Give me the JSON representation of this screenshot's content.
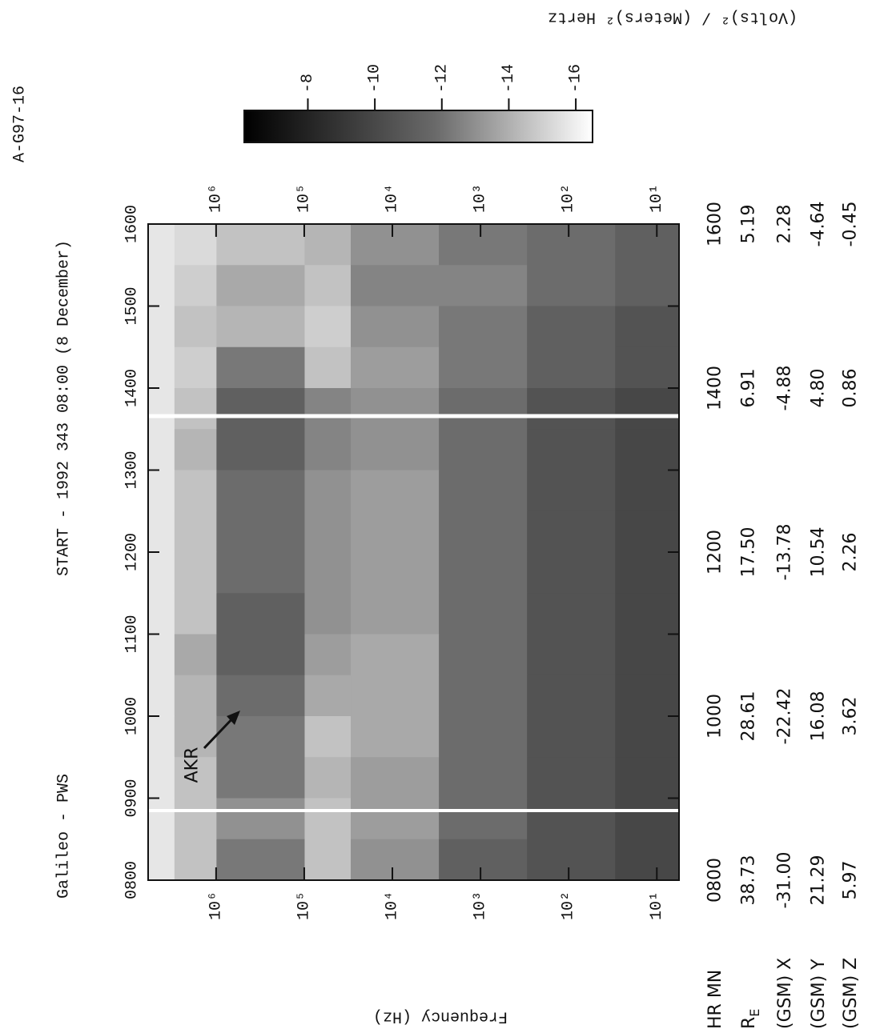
{
  "label": "A-G97-16",
  "chart_data": {
    "type": "heatmap",
    "title": "Galileo - PWS",
    "subtitle": "START - 1992 343 08:00 (8 December)",
    "y_label": "Frequency (Hz)",
    "colorbar_label": "(Volts)² / (Meters)² Hertz",
    "annotations": [
      "AKR"
    ],
    "xlim": [
      8,
      16
    ],
    "xticks": [
      {
        "value": 8,
        "label": "0800"
      },
      {
        "value": 9,
        "label": "0900"
      },
      {
        "value": 10,
        "label": "1000"
      },
      {
        "value": 11,
        "label": "1100"
      },
      {
        "value": 12,
        "label": "1200"
      },
      {
        "value": 13,
        "label": "1300"
      },
      {
        "value": 14,
        "label": "1400"
      },
      {
        "value": 15,
        "label": "1500"
      },
      {
        "value": 16,
        "label": "1600"
      }
    ],
    "ylim": [
      5.6,
      5900000
    ],
    "log_y": true,
    "yticks": [
      {
        "value": 10,
        "label": "10¹"
      },
      {
        "value": 100,
        "label": "10²"
      },
      {
        "value": 1000,
        "label": "10³"
      },
      {
        "value": 10000,
        "label": "10⁴"
      },
      {
        "value": 100000,
        "label": "10⁵"
      },
      {
        "value": 1000000,
        "label": "10⁶"
      }
    ],
    "x_bins": [
      8,
      8.5,
      9,
      9.5,
      10,
      10.5,
      11,
      11.5,
      12,
      12.5,
      13,
      13.5,
      14,
      14.5,
      15,
      15.5,
      16
    ],
    "y_bins": [
      5.6,
      30,
      300,
      3000,
      30000,
      100000,
      1000000,
      3000000,
      5900000
    ],
    "z": [
      [
        -9,
        -9,
        -9,
        -9,
        -9,
        -9,
        -9,
        -9,
        -9,
        -9,
        -9,
        -9,
        -9.5,
        -9.5,
        -10,
        -10
      ],
      [
        -9.5,
        -9.5,
        -9.5,
        -9.5,
        -9.5,
        -9.5,
        -9.5,
        -9.5,
        -9.5,
        -9.5,
        -9.5,
        -9.5,
        -10,
        -10,
        -10.5,
        -10.5
      ],
      [
        -10,
        -10.5,
        -10.5,
        -10.5,
        -10.5,
        -10.5,
        -10.5,
        -10.5,
        -10.5,
        -10.5,
        -10.5,
        -10.5,
        -11,
        -11,
        -11.5,
        -11
      ],
      [
        -12,
        -12.5,
        -12.5,
        -13,
        -13,
        -13,
        -12.5,
        -12.5,
        -12.5,
        -12.5,
        -12,
        -12,
        -12.5,
        -12,
        -11.5,
        -12
      ],
      [
        -14,
        -14,
        -13.5,
        -14,
        -13,
        -12.5,
        -12,
        -12,
        -12,
        -12,
        -11.5,
        -11.5,
        -14,
        -14.5,
        -14,
        -13.5
      ],
      [
        -11,
        -12,
        -11,
        -11,
        -10.5,
        -10,
        -10,
        -10.5,
        -10.5,
        -10.5,
        -10,
        -10,
        -11,
        -13.5,
        -13,
        -14
      ],
      [
        -14,
        -14,
        -14,
        -13.5,
        -13.5,
        -13,
        -14,
        -14,
        -14,
        -14,
        -13.5,
        -14,
        -14.5,
        -14,
        -14.5,
        -15
      ],
      [
        -15.5,
        -15.5,
        -15.5,
        -15.5,
        -15.5,
        -15.5,
        -15.5,
        -15.5,
        -15.5,
        -15.5,
        -15.5,
        -15.5,
        -15.5,
        -15.5,
        -15.5,
        -15.5
      ]
    ],
    "zlim": [
      -6.1,
      -16.5
    ],
    "zticks": [
      -8,
      -10,
      -12,
      -14,
      -16
    ]
  },
  "ephemeris": {
    "rows": [
      {
        "label": "HR MN",
        "values": [
          "0800",
          "1000",
          "1200",
          "1400",
          "1600"
        ]
      },
      {
        "label": "R",
        "label_sub": "E",
        "values": [
          "38.73",
          "28.61",
          "17.50",
          "6.91",
          "5.19"
        ]
      },
      {
        "label": "(GSM) X",
        "values": [
          "-31.00",
          "-22.42",
          "-13.78",
          "-4.88",
          "2.28"
        ]
      },
      {
        "label": "(GSM) Y",
        "values": [
          "21.29",
          "16.08",
          "10.54",
          "4.80",
          "-4.64"
        ]
      },
      {
        "label": "(GSM) Z",
        "values": [
          "5.97",
          "3.62",
          "2.26",
          "0.86",
          "-0.45"
        ]
      }
    ]
  }
}
